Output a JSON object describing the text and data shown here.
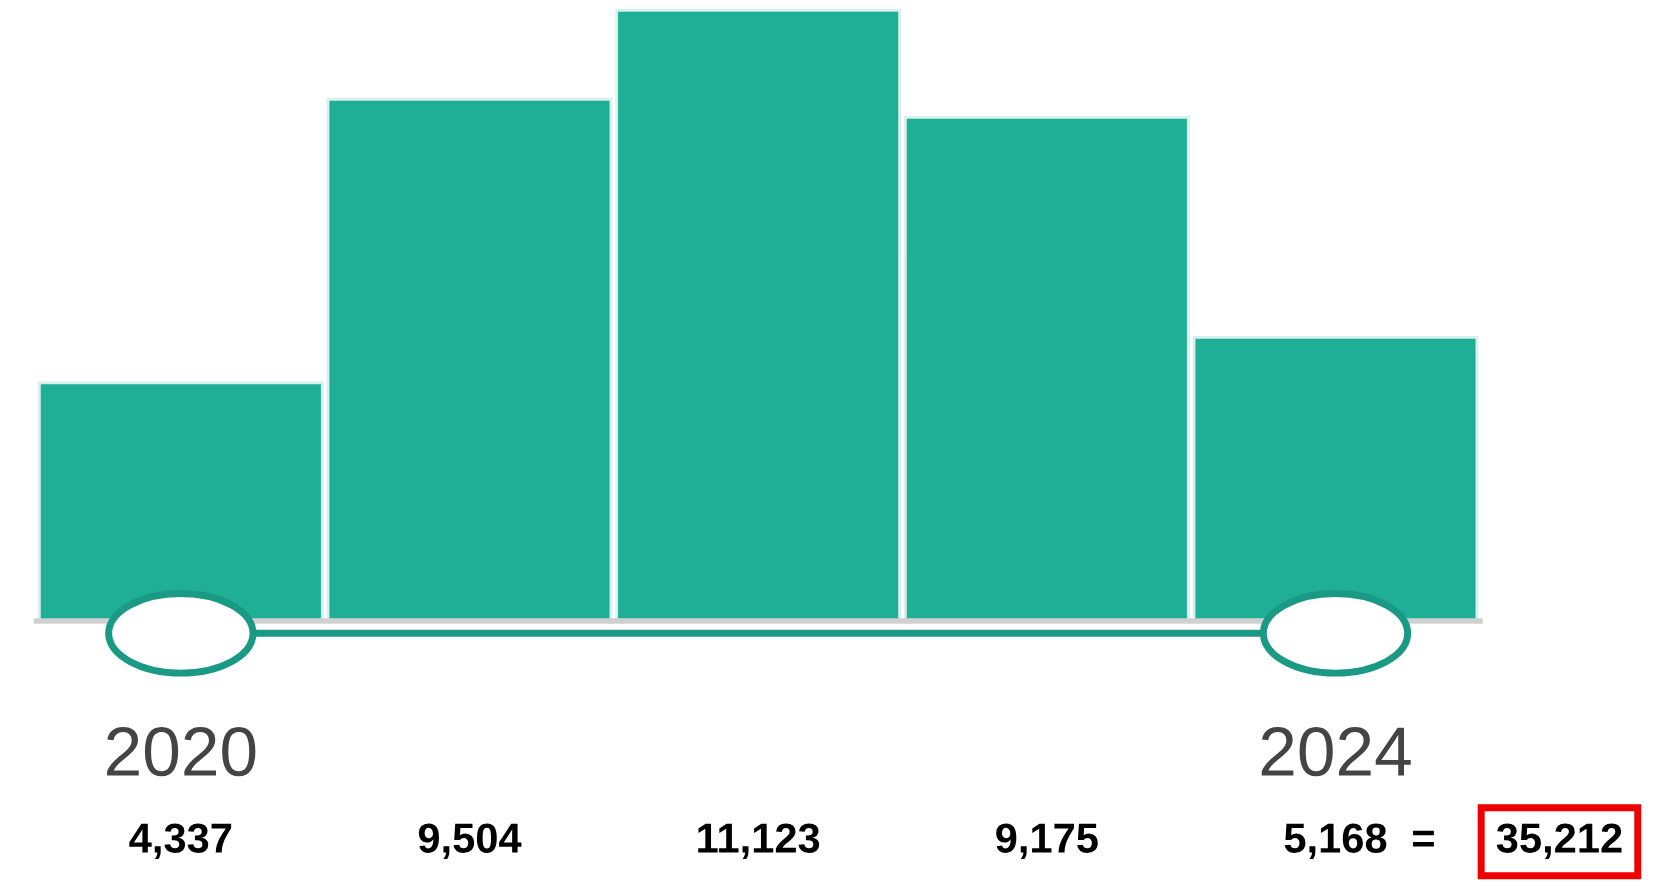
{
  "chart_data": {
    "type": "bar",
    "categories": [
      "2020",
      null,
      null,
      null,
      "2024"
    ],
    "values": [
      4337,
      9504,
      11123,
      9175,
      5168
    ],
    "value_labels": [
      "4,337",
      "9,504",
      "11,123",
      "9,175",
      "5,168"
    ],
    "color": "#1fae96",
    "ylim": [
      0,
      11150
    ],
    "tick_labels": "x",
    "grid": false,
    "annotations": [
      "=",
      "35,212"
    ]
  }
}
